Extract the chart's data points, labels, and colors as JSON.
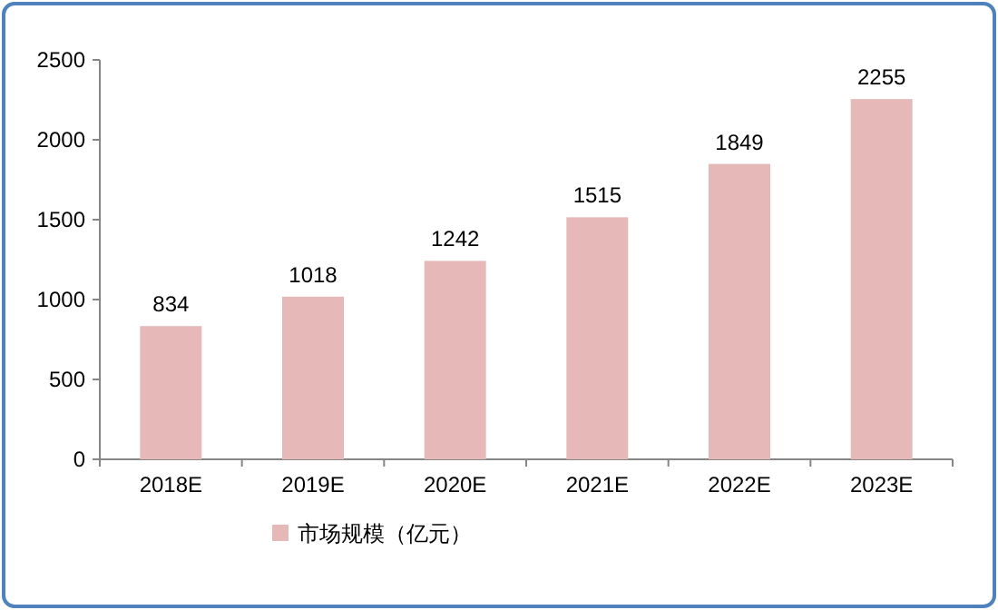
{
  "chart_data": {
    "type": "bar",
    "categories": [
      "2018E",
      "2019E",
      "2020E",
      "2021E",
      "2022E",
      "2023E"
    ],
    "series": [
      {
        "name": "市场规模（亿元）",
        "color": "#e6b9b8",
        "values": [
          834,
          1018,
          1242,
          1515,
          1849,
          2255
        ]
      }
    ],
    "ylim": [
      0,
      2500
    ],
    "yticks": [
      0,
      500,
      1000,
      1500,
      2000,
      2500
    ],
    "data_labels": true,
    "legend": "bottom",
    "grid": false
  }
}
